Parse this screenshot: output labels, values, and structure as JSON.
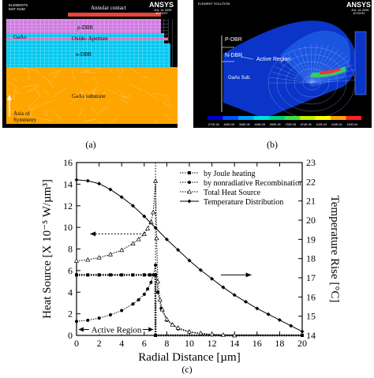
{
  "panel_a": {
    "caption": "(a)",
    "corner_top": "ELEMENTS",
    "corner_sub": "MAT NUM",
    "logo": "ANSYS",
    "date": "JUL 14 2005",
    "time": "10:03:07",
    "labels": {
      "annular_contact": "Annular contact",
      "p_dbr": "p-DBR",
      "gaas": "GaAs",
      "oxide_aperture": "Oxide- Aperture",
      "n_dbr": "n-DBR",
      "substrate": "GaAs substrate",
      "axis": "Axis of\nSymmetry"
    },
    "colors": {
      "p_dbr": "#cf7be0",
      "n_dbr": "#00c8f0",
      "substrate": "#ffa500",
      "gaas_top": "#4fb3e8",
      "contact": "#e8443a",
      "background": "#000000"
    }
  },
  "panel_b": {
    "caption": "(b)",
    "logo": "ANSYS",
    "header_left": "ELEMENT SOLUTION",
    "date": "JUL 14 2005",
    "time": "10:33:51",
    "labels": {
      "p_dbr": "P-DBR",
      "n_dbr": "N-DBR",
      "active": "Active Region",
      "sub": "GaAs Sub."
    },
    "colorbar_ticks": [
      ".271E-06",
      ".164E-05",
      ".306E-05",
      ".448E-05",
      ".590E-05",
      ".732E-05",
      ".874E-05",
      ".102E-04",
      ".116E-04",
      ".130E-04"
    ],
    "colorbar_colors": [
      "#0000cc",
      "#0050ff",
      "#00a0ff",
      "#00e0e0",
      "#00d080",
      "#40e040",
      "#c0f000",
      "#ffff00",
      "#ffa000",
      "#ff2020"
    ],
    "colors": {
      "background": "#000000",
      "mesh": "#0a35c8",
      "hot": "#ff3030"
    }
  },
  "panel_c": {
    "caption": "(c)",
    "arrow_label": "Active Region"
  },
  "chart_data": {
    "type": "line",
    "title": "",
    "xlabel": "Radial Distance [µm]",
    "ylabel_left": "Heat Source [X 10⁻⁵ W/µm³]",
    "ylabel_right": "Temperature Rise [°C]",
    "xlim": [
      0,
      20
    ],
    "ylim_left": [
      0,
      16
    ],
    "ylim_right": [
      14,
      23
    ],
    "x_ticks": [
      0,
      2,
      4,
      6,
      8,
      10,
      12,
      14,
      16,
      18,
      20
    ],
    "y_left_ticks": [
      0,
      2,
      4,
      6,
      8,
      10,
      12,
      14,
      16
    ],
    "y_right_ticks": [
      14,
      15,
      16,
      17,
      18,
      19,
      20,
      21,
      22,
      23
    ],
    "legend_position": "top-right",
    "grid": false,
    "series": [
      {
        "name": "by Joule heating",
        "axis": "left",
        "style": "dotted-square",
        "x": [
          0,
          1,
          2,
          3,
          4,
          5,
          6,
          6.5,
          6.99,
          7.0,
          20
        ],
        "y": [
          5.6,
          5.6,
          5.6,
          5.6,
          5.6,
          5.6,
          5.6,
          5.6,
          5.6,
          0,
          0
        ]
      },
      {
        "name": "by nonradiative Recombination",
        "axis": "left",
        "style": "dotted-circle",
        "x": [
          0,
          1,
          2,
          3,
          4,
          5,
          5.5,
          6,
          6.3,
          6.6,
          6.8,
          7.0,
          7.2,
          7.5,
          8,
          9,
          10,
          11,
          12,
          20
        ],
        "y": [
          1.3,
          1.4,
          1.6,
          1.9,
          2.3,
          2.9,
          3.3,
          3.8,
          4.3,
          4.9,
          5.6,
          6.5,
          4.0,
          2.5,
          1.4,
          0.6,
          0.3,
          0.15,
          0.05,
          0
        ]
      },
      {
        "name": "Total Heat Source",
        "axis": "left",
        "style": "dotted-triangle",
        "x": [
          0,
          1,
          2,
          3,
          4,
          5,
          5.5,
          6,
          6.3,
          6.6,
          6.8,
          7.0,
          7.1,
          7.2,
          7.4,
          7.6,
          8,
          8.5,
          9,
          10,
          11,
          12,
          13,
          14
        ],
        "y": [
          6.9,
          7.0,
          7.2,
          7.5,
          7.9,
          8.5,
          8.9,
          9.4,
          9.9,
          10.5,
          11.4,
          14.3,
          9.0,
          5.0,
          3.3,
          2.4,
          1.5,
          1.0,
          0.7,
          0.35,
          0.2,
          0.1,
          0.05,
          0
        ]
      },
      {
        "name": "Temperature Distribution",
        "axis": "right",
        "style": "solid-diamond",
        "x": [
          0,
          1,
          2,
          3,
          4,
          5,
          6,
          7,
          8,
          9,
          10,
          11,
          12,
          13,
          14,
          15,
          16,
          17,
          18,
          19,
          20
        ],
        "y": [
          22.1,
          22.05,
          21.9,
          21.6,
          21.2,
          20.75,
          20.2,
          19.6,
          19.0,
          18.45,
          17.9,
          17.4,
          16.95,
          16.5,
          16.1,
          15.75,
          15.4,
          15.1,
          14.8,
          14.5,
          14.2
        ]
      }
    ]
  }
}
